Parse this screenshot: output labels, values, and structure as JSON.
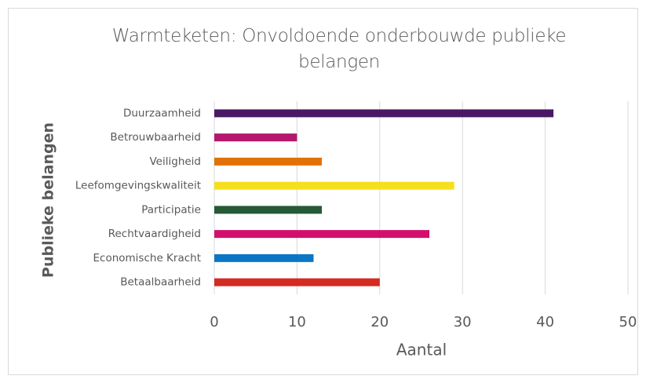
{
  "chart_data": {
    "type": "bar",
    "orientation": "horizontal",
    "title": "Warmteketen: Onvoldoende onderbouwde publieke belangen",
    "categories": [
      "Duurzaamheid",
      "Betrouwbaarheid",
      "Veiligheid",
      "Leefomgevingskwaliteit",
      "Participatie",
      "Rechtvaardigheid",
      "Economische Kracht",
      "Betaalbaarheid"
    ],
    "values": [
      41,
      10,
      13,
      29,
      13,
      26,
      12,
      20
    ],
    "colors": [
      "#4b1865",
      "#b5176e",
      "#e07209",
      "#f5df1e",
      "#275937",
      "#d20f6c",
      "#0b77c4",
      "#d52a22"
    ],
    "xlabel": "Aantal",
    "ylabel": "Publieke belangen",
    "xlim": [
      0,
      50
    ],
    "xticks": [
      0,
      10,
      20,
      30,
      40,
      50
    ],
    "grid": true
  }
}
